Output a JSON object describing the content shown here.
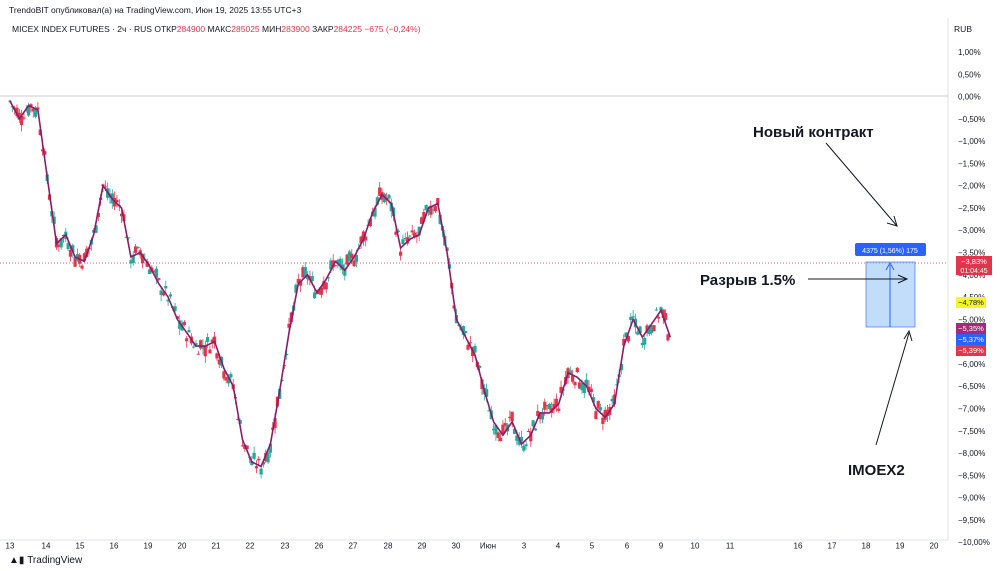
{
  "header": {
    "publisher": "TrendoBIT опубликовал(а) на TradingView.com, Июн 19, 2025 13:55 UTC+3",
    "symbol": "MICEX INDEX FUTURES · 2ч · RUS",
    "open_label": "ОТКР",
    "open": "284900",
    "high_label": "МАКС",
    "high": "285025",
    "low_label": "МИН",
    "low": "283900",
    "close_label": "ЗАКР",
    "close": "284225",
    "change": "−675 (−0,24%)",
    "currency": "RUB"
  },
  "footer": {
    "brand": "TradingView"
  },
  "colors": {
    "up": "#26a69a",
    "down": "#e0364b",
    "line": "#8a1c6b",
    "box": "#90c1f5"
  },
  "chart_data": {
    "type": "line",
    "title": "",
    "y_axis": {
      "scale": "percent",
      "ticks": [
        "1,00%",
        "0,50%",
        "0,00%",
        "−0,50%",
        "−1,00%",
        "−1,50%",
        "−2,00%",
        "−2,50%",
        "−3,00%",
        "−3,50%",
        "−4,00%",
        "−4,50%",
        "−5,00%",
        "−5,50%",
        "−6,00%",
        "−6,50%",
        "−7,00%",
        "−7,50%",
        "−8,00%",
        "−8,50%",
        "−9,00%",
        "−9,50%",
        "−10,00%"
      ],
      "range": [
        1.0,
        -10.0
      ]
    },
    "x_axis": {
      "ticks": [
        "13",
        "14",
        "15",
        "16",
        "19",
        "20",
        "21",
        "22",
        "23",
        "26",
        "27",
        "28",
        "29",
        "30",
        "Июн",
        "3",
        "4",
        "5",
        "6",
        "9",
        "10",
        "11",
        "16",
        "17",
        "18",
        "19",
        "20"
      ]
    },
    "grid": false,
    "series": [
      {
        "name": "IMOEX2",
        "points": [
          [
            13,
            -0.1
          ],
          [
            13.5,
            -0.5
          ],
          [
            14,
            -0.2
          ],
          [
            14.5,
            -0.3
          ],
          [
            15,
            -1.8
          ],
          [
            15.5,
            -3.3
          ],
          [
            16,
            -3.1
          ],
          [
            16.5,
            -3.6
          ],
          [
            17,
            -3.7
          ],
          [
            17.5,
            -3.1
          ],
          [
            18,
            -2.0
          ],
          [
            18.5,
            -2.3
          ],
          [
            19,
            -2.5
          ],
          [
            19.5,
            -3.6
          ],
          [
            20,
            -3.5
          ],
          [
            20.5,
            -3.8
          ],
          [
            21,
            -4.2
          ],
          [
            21.5,
            -4.5
          ],
          [
            22,
            -5.0
          ],
          [
            22.5,
            -5.3
          ],
          [
            23,
            -5.6
          ],
          [
            23.5,
            -5.6
          ],
          [
            24,
            -5.5
          ],
          [
            24.5,
            -6.1
          ],
          [
            25,
            -6.5
          ],
          [
            25.5,
            -7.7
          ],
          [
            26,
            -8.2
          ],
          [
            26.5,
            -8.3
          ],
          [
            27,
            -7.8
          ],
          [
            27.5,
            -6.6
          ],
          [
            28,
            -5.3
          ],
          [
            28.5,
            -4.2
          ],
          [
            29,
            -4.0
          ],
          [
            29.5,
            -4.4
          ],
          [
            30,
            -4.1
          ],
          [
            30.5,
            -3.7
          ],
          [
            31,
            -3.9
          ],
          [
            31.5,
            -3.6
          ],
          [
            32,
            -3.2
          ],
          [
            32.5,
            -2.6
          ],
          [
            33,
            -2.2
          ],
          [
            33.5,
            -2.4
          ],
          [
            34,
            -3.4
          ],
          [
            34.5,
            -3.2
          ],
          [
            35,
            -3.1
          ],
          [
            35.5,
            -2.5
          ],
          [
            36,
            -2.4
          ],
          [
            36.5,
            -3.5
          ],
          [
            37,
            -5.0
          ],
          [
            37.5,
            -5.4
          ],
          [
            38,
            -5.8
          ],
          [
            38.5,
            -6.6
          ],
          [
            39,
            -7.3
          ],
          [
            39.5,
            -7.6
          ],
          [
            40,
            -7.3
          ],
          [
            40.5,
            -7.8
          ],
          [
            41,
            -7.6
          ],
          [
            41.5,
            -7.1
          ],
          [
            42,
            -7.1
          ],
          [
            42.5,
            -6.9
          ],
          [
            43,
            -6.2
          ],
          [
            43.5,
            -6.3
          ],
          [
            44,
            -6.5
          ],
          [
            44.5,
            -7.0
          ],
          [
            45,
            -7.2
          ],
          [
            45.5,
            -6.9
          ],
          [
            46,
            -5.6
          ],
          [
            46.5,
            -5.0
          ],
          [
            47,
            -5.4
          ],
          [
            47.5,
            -5.1
          ],
          [
            48,
            -4.8
          ],
          [
            48.5,
            -5.4
          ]
        ]
      }
    ],
    "annotations": [
      {
        "text": "Новый контракт"
      },
      {
        "text": "Разрыв 1.5%"
      },
      {
        "text": "IMOEX2"
      },
      {
        "text": "4375 (1,56%) 175"
      }
    ],
    "price_labels": [
      {
        "text": "−3,83%",
        "sub": "01:04:45",
        "color": "#e0364b"
      },
      {
        "text": "−4,78%",
        "color": "#f5f52a"
      },
      {
        "text": "−5,35%",
        "color": "#a12c7c"
      },
      {
        "text": "−5,37%",
        "color": "#2962ff"
      },
      {
        "text": "−5,39%",
        "color": "#e0364b"
      }
    ]
  }
}
